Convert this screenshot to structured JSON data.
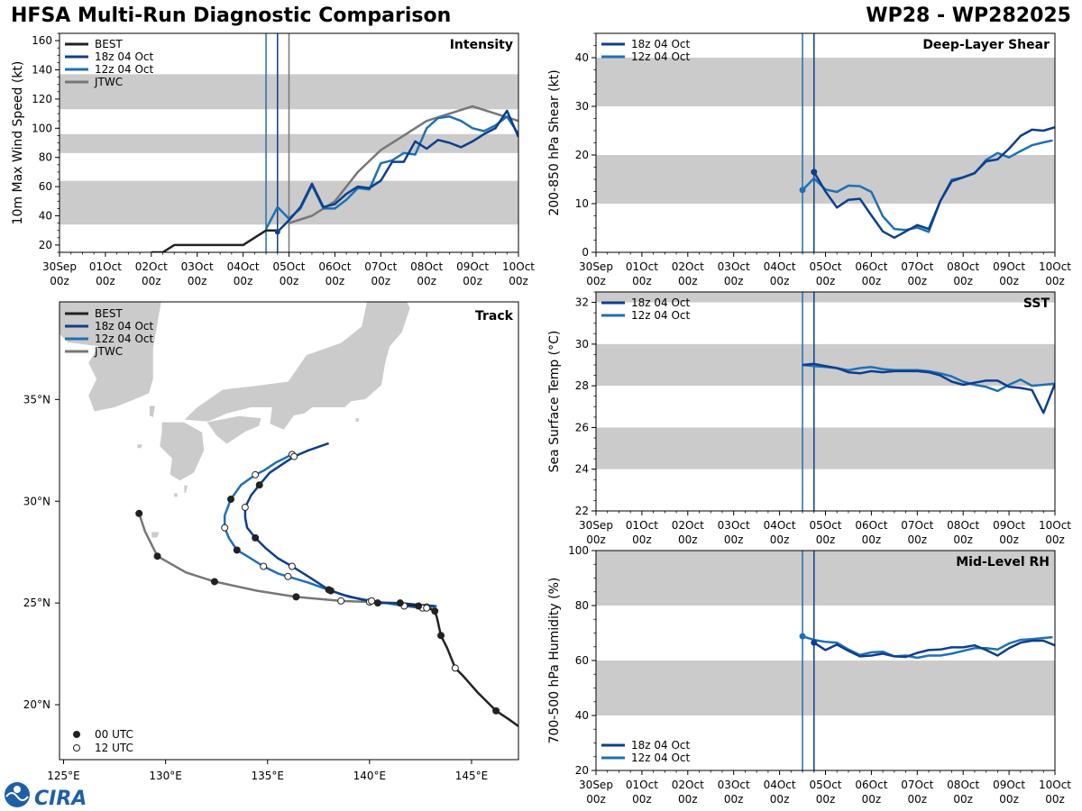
{
  "header": {
    "title": "HFSA Multi-Run Diagnostic Comparison",
    "storm_id": "WP28 - WP282025"
  },
  "logo_text": "CIRA",
  "styles": {
    "BEST": {
      "color": "#222222"
    },
    "18z 04 Oct": {
      "color": "#0d3f8c"
    },
    "12z 04 Oct": {
      "color": "#1f70b4"
    },
    "JTWC": {
      "color": "#777777"
    }
  },
  "time_axis": {
    "ticks": [
      {
        "x": 0,
        "l1": "30Sep",
        "l2": "00z"
      },
      {
        "x": 1,
        "l1": "01Oct",
        "l2": "00z"
      },
      {
        "x": 2,
        "l1": "02Oct",
        "l2": "00z"
      },
      {
        "x": 3,
        "l1": "03Oct",
        "l2": "00z"
      },
      {
        "x": 4,
        "l1": "04Oct",
        "l2": "00z"
      },
      {
        "x": 5,
        "l1": "05Oct",
        "l2": "00z"
      },
      {
        "x": 6,
        "l1": "06Oct",
        "l2": "00z"
      },
      {
        "x": 7,
        "l1": "07Oct",
        "l2": "00z"
      },
      {
        "x": 8,
        "l1": "08Oct",
        "l2": "00z"
      },
      {
        "x": 9,
        "l1": "09Oct",
        "l2": "00z"
      },
      {
        "x": 10,
        "l1": "10Oct",
        "l2": "00z"
      }
    ],
    "range": [
      0,
      10
    ]
  },
  "chart_data": [
    {
      "id": "intensity",
      "type": "line",
      "title": "Intensity",
      "ylabel": "10m Max Wind Speed (kt)",
      "xlim": [
        0,
        10
      ],
      "ylim": [
        15,
        165
      ],
      "yticks": [
        20,
        40,
        60,
        80,
        100,
        120,
        140,
        160
      ],
      "bands": [
        [
          34,
          64
        ],
        [
          83,
          96
        ],
        [
          113,
          137
        ]
      ],
      "vlines": [
        {
          "x": 4.5,
          "series": "12z 04 Oct"
        },
        {
          "x": 4.75,
          "series": "18z 04 Oct"
        },
        {
          "x": 5.0,
          "series": "JTWC"
        }
      ],
      "legend": [
        "BEST",
        "18z 04 Oct",
        "12z 04 Oct",
        "JTWC"
      ],
      "series": [
        {
          "name": "BEST",
          "x": [
            2.0,
            2.25,
            2.5,
            2.75,
            3.0,
            3.25,
            3.5,
            3.75,
            4.0,
            4.25,
            4.5,
            4.75
          ],
          "y": [
            15,
            15,
            20,
            20,
            20,
            20,
            20,
            20,
            20,
            25,
            30,
            30
          ]
        },
        {
          "name": "18z 04 Oct",
          "x": [
            4.75,
            5.0,
            5.25,
            5.5,
            5.75,
            6.0,
            6.25,
            6.5,
            6.75,
            7.0,
            7.25,
            7.5,
            7.75,
            8.0,
            8.25,
            8.5,
            8.75,
            9.0,
            9.25,
            9.5,
            9.75,
            10.0
          ],
          "y": [
            29,
            37,
            46,
            62,
            46,
            48,
            55,
            60,
            59,
            64,
            77,
            77,
            91,
            86,
            92,
            90,
            87,
            91,
            96,
            100,
            112,
            94
          ]
        },
        {
          "name": "12z 04 Oct",
          "x": [
            4.5,
            4.75,
            5.0,
            5.25,
            5.5,
            5.75,
            6.0,
            6.25,
            6.5,
            6.75,
            7.0,
            7.25,
            7.5,
            7.75,
            8.0,
            8.25,
            8.5,
            8.75,
            9.0,
            9.25,
            9.5,
            9.75,
            10.0
          ],
          "y": [
            31,
            46,
            38,
            45,
            61,
            45,
            45,
            51,
            59,
            58,
            76,
            78,
            83,
            82,
            100,
            107,
            108,
            105,
            100,
            98,
            102,
            108,
            96
          ]
        },
        {
          "name": "JTWC",
          "x": [
            5.0,
            5.5,
            6.0,
            6.5,
            7.0,
            7.5,
            8.0,
            8.5,
            9.0,
            9.5,
            10.0
          ],
          "y": [
            35,
            40,
            50,
            70,
            85,
            95,
            105,
            110,
            115,
            110,
            105
          ]
        }
      ]
    },
    {
      "id": "shear",
      "type": "line",
      "title": "Deep-Layer Shear",
      "ylabel": "200-850 hPa Shear (kt)",
      "xlim": [
        0,
        10
      ],
      "ylim": [
        0,
        45
      ],
      "yticks": [
        0,
        10,
        20,
        30,
        40
      ],
      "bands": [
        [
          10,
          20
        ],
        [
          30,
          40
        ]
      ],
      "vlines": [
        {
          "x": 4.5,
          "series": "12z 04 Oct"
        },
        {
          "x": 4.75,
          "series": "18z 04 Oct"
        }
      ],
      "legend": [
        "18z 04 Oct",
        "12z 04 Oct"
      ],
      "series": [
        {
          "name": "18z 04 Oct",
          "marker_first": true,
          "x": [
            4.75,
            5.0,
            5.25,
            5.5,
            5.75,
            6.0,
            6.25,
            6.5,
            6.75,
            7.0,
            7.25,
            7.5,
            7.75,
            8.0,
            8.25,
            8.5,
            8.75,
            9.0,
            9.25,
            9.5,
            9.75,
            10.0
          ],
          "y": [
            16.5,
            12.5,
            9.2,
            10.8,
            11.0,
            7.6,
            4.3,
            3.0,
            4.3,
            5.6,
            4.8,
            10.5,
            14.6,
            15.4,
            16.3,
            18.7,
            19.1,
            21.3,
            23.9,
            25.2,
            25.0,
            25.7
          ]
        },
        {
          "name": "12z 04 Oct",
          "marker_first": true,
          "x": [
            4.5,
            4.75,
            5.0,
            5.25,
            5.5,
            5.75,
            6.0,
            6.25,
            6.5,
            6.75,
            7.0,
            7.25,
            7.5,
            7.75,
            8.0,
            8.25,
            8.5,
            8.75,
            9.0,
            9.25,
            9.5,
            9.75,
            9.95
          ],
          "y": [
            12.8,
            15.2,
            12.9,
            12.4,
            13.7,
            13.6,
            12.4,
            7.4,
            4.8,
            4.6,
            5.1,
            4.2,
            10.5,
            14.9,
            15.4,
            16.2,
            19.0,
            20.4,
            19.5,
            20.8,
            22.0,
            22.6,
            23.0
          ]
        }
      ]
    },
    {
      "id": "sst",
      "type": "line",
      "title": "SST",
      "ylabel": "Sea Surface Temp (°C)",
      "xlim": [
        0,
        10
      ],
      "ylim": [
        22,
        32.5
      ],
      "yticks": [
        22,
        24,
        26,
        28,
        30,
        32
      ],
      "bands": [
        [
          24,
          26
        ],
        [
          28,
          30
        ],
        [
          32,
          32.5
        ]
      ],
      "vlines": [
        {
          "x": 4.5,
          "series": "12z 04 Oct"
        },
        {
          "x": 4.75,
          "series": "18z 04 Oct"
        }
      ],
      "legend": [
        "18z 04 Oct",
        "12z 04 Oct"
      ],
      "series": [
        {
          "name": "18z 04 Oct",
          "x": [
            4.5,
            4.75,
            5.0,
            5.25,
            5.5,
            5.75,
            6.0,
            6.25,
            6.5,
            6.75,
            7.0,
            7.25,
            7.5,
            7.75,
            8.0,
            8.25,
            8.5,
            8.75,
            9.0,
            9.25,
            9.5,
            9.75,
            10.0
          ],
          "y": [
            29.0,
            29.05,
            28.95,
            28.85,
            28.65,
            28.6,
            28.7,
            28.65,
            28.7,
            28.7,
            28.7,
            28.65,
            28.5,
            28.2,
            28.05,
            28.15,
            28.25,
            28.25,
            27.95,
            27.9,
            27.8,
            26.7,
            28.1
          ]
        },
        {
          "name": "12z 04 Oct",
          "x": [
            4.5,
            4.75,
            5.0,
            5.25,
            5.5,
            5.75,
            6.0,
            6.25,
            6.5,
            6.75,
            7.0,
            7.25,
            7.5,
            7.75,
            8.0,
            8.25,
            8.5,
            8.75,
            9.0,
            9.25,
            9.5,
            9.75,
            10.0
          ],
          "y": [
            29.0,
            28.95,
            28.9,
            28.85,
            28.75,
            28.85,
            28.9,
            28.8,
            28.75,
            28.75,
            28.75,
            28.7,
            28.6,
            28.45,
            28.2,
            28.05,
            27.95,
            27.75,
            28.05,
            28.3,
            28.0,
            28.05,
            28.1
          ]
        }
      ]
    },
    {
      "id": "rh",
      "type": "line",
      "title": "Mid-Level RH",
      "ylabel": "700-500 hPa Humidity (%)",
      "xlim": [
        0,
        10
      ],
      "ylim": [
        20,
        100
      ],
      "yticks": [
        20,
        40,
        60,
        80,
        100
      ],
      "bands": [
        [
          40,
          60
        ],
        [
          80,
          100
        ]
      ],
      "vlines": [
        {
          "x": 4.5,
          "series": "12z 04 Oct"
        },
        {
          "x": 4.75,
          "series": "18z 04 Oct"
        }
      ],
      "legend": [
        "18z 04 Oct",
        "12z 04 Oct"
      ],
      "series": [
        {
          "name": "18z 04 Oct",
          "marker_first": true,
          "x": [
            4.75,
            5.0,
            5.25,
            5.5,
            5.75,
            6.0,
            6.25,
            6.5,
            6.75,
            7.0,
            7.25,
            7.5,
            7.75,
            8.0,
            8.25,
            8.5,
            8.75,
            9.0,
            9.25,
            9.5,
            9.75,
            10.0
          ],
          "y": [
            66.5,
            63.8,
            65.8,
            63.5,
            61.5,
            61.8,
            62.5,
            61.5,
            61.3,
            62.8,
            63.8,
            64.0,
            64.8,
            64.8,
            65.5,
            63.8,
            61.8,
            64.5,
            66.5,
            67.2,
            67.2,
            65.5
          ]
        },
        {
          "name": "12z 04 Oct",
          "marker_first": true,
          "x": [
            4.5,
            4.75,
            5.0,
            5.25,
            5.5,
            5.75,
            6.0,
            6.25,
            6.5,
            6.75,
            7.0,
            7.25,
            7.5,
            7.75,
            8.0,
            8.25,
            8.5,
            8.75,
            9.0,
            9.25,
            9.5,
            9.75,
            9.95
          ],
          "y": [
            68.8,
            67.5,
            66.8,
            66.5,
            64.0,
            62.0,
            63.0,
            63.2,
            61.5,
            61.8,
            61.0,
            61.8,
            61.8,
            62.5,
            63.5,
            64.5,
            64.5,
            64.0,
            66.2,
            67.5,
            67.8,
            68.2,
            68.5
          ]
        }
      ]
    },
    {
      "id": "track",
      "type": "scatter",
      "title": "Track",
      "xlim": [
        124.8,
        147.3
      ],
      "ylim": [
        17.3,
        39.8
      ],
      "xticks": [
        {
          "v": 125,
          "l": "125°E"
        },
        {
          "v": 130,
          "l": "130°E"
        },
        {
          "v": 135,
          "l": "135°E"
        },
        {
          "v": 140,
          "l": "140°E"
        },
        {
          "v": 145,
          "l": "145°E"
        }
      ],
      "yticks": [
        {
          "v": 20,
          "l": "20°N"
        },
        {
          "v": 25,
          "l": "25°N"
        },
        {
          "v": 30,
          "l": "30°N"
        },
        {
          "v": 35,
          "l": "35°N"
        }
      ],
      "legend": [
        "BEST",
        "18z 04 Oct",
        "12z 04 Oct",
        "JTWC"
      ],
      "marker_legend": [
        "00 UTC",
        "12 UTC"
      ],
      "series": [
        {
          "name": "BEST",
          "lon": [
            147.5,
            146.8,
            146.2,
            145.3,
            144.6,
            144.2,
            143.8,
            143.5,
            143.3,
            143.2,
            143.0,
            142.8,
            142.4,
            141.8
          ],
          "lat": [
            18.8,
            19.3,
            19.7,
            20.6,
            21.4,
            21.8,
            22.8,
            23.4,
            24.3,
            24.6,
            24.7,
            24.75,
            24.85,
            24.9
          ],
          "marks": [
            null,
            null,
            0,
            null,
            null,
            1,
            null,
            0,
            null,
            0,
            null,
            1,
            0,
            null
          ]
        },
        {
          "name": "18z 04 Oct",
          "lon": [
            143.2,
            142.5,
            141.5,
            140.4,
            139.5,
            138.7,
            138.0,
            137.0,
            136.2,
            135.5,
            134.9,
            134.4,
            134.0,
            133.9,
            133.9,
            134.2,
            134.6,
            135.1,
            135.7,
            136.3,
            137.0,
            138.0
          ],
          "lat": [
            24.85,
            24.9,
            25.0,
            25.0,
            25.2,
            25.4,
            25.65,
            26.3,
            26.8,
            27.2,
            27.7,
            28.2,
            28.7,
            29.2,
            29.7,
            30.3,
            30.8,
            31.4,
            31.8,
            32.2,
            32.5,
            32.85
          ],
          "marks": [
            null,
            null,
            0,
            0,
            null,
            null,
            0,
            null,
            1,
            null,
            null,
            0,
            null,
            null,
            1,
            null,
            0,
            null,
            null,
            1,
            null,
            null
          ]
        },
        {
          "name": "12z 04 Oct",
          "lon": [
            143.3,
            142.6,
            141.7,
            140.8,
            140.1,
            139.0,
            138.1,
            137.0,
            136.0,
            135.5,
            134.8,
            134.0,
            133.5,
            133.1,
            132.9,
            132.9,
            133.2,
            133.7,
            134.4,
            134.8,
            135.4,
            136.2
          ],
          "lat": [
            24.85,
            24.75,
            24.85,
            25.0,
            25.1,
            25.3,
            25.6,
            26.0,
            26.3,
            26.45,
            26.8,
            27.3,
            27.6,
            28.2,
            28.7,
            29.3,
            30.1,
            30.8,
            31.3,
            31.5,
            31.9,
            32.3
          ],
          "marks": [
            null,
            1,
            1,
            null,
            1,
            null,
            0,
            null,
            1,
            null,
            1,
            null,
            0,
            null,
            1,
            null,
            0,
            null,
            1,
            null,
            null,
            1
          ]
        },
        {
          "name": "JTWC",
          "lon": [
            142.8,
            141.5,
            140.0,
            138.6,
            136.4,
            134.5,
            132.4,
            131.0,
            129.6,
            129.0,
            128.7
          ],
          "lat": [
            24.8,
            25.0,
            25.05,
            25.1,
            25.3,
            25.6,
            26.05,
            26.5,
            27.3,
            28.5,
            29.4
          ],
          "marks": [
            1,
            null,
            1,
            1,
            0,
            null,
            0,
            null,
            0,
            null,
            0
          ]
        }
      ]
    }
  ]
}
